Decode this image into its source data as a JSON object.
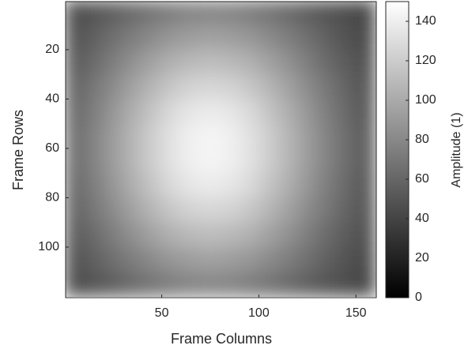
{
  "chart_data": {
    "type": "heatmap",
    "xlabel": "Frame Columns",
    "ylabel": "Frame Rows",
    "colorbar_label": "Amplitude (1)",
    "colormap": "gray",
    "x": [
      5,
      15,
      25,
      35,
      45,
      55,
      65,
      75,
      85,
      95,
      105,
      115,
      125,
      135,
      145,
      155
    ],
    "y": [
      5,
      15,
      25,
      35,
      45,
      55,
      65,
      75,
      85,
      95,
      105,
      115
    ],
    "values": [
      [
        45,
        50,
        56,
        63,
        69,
        74,
        78,
        79,
        78,
        74,
        69,
        63,
        56,
        50,
        45,
        40
      ],
      [
        49,
        57,
        65,
        74,
        82,
        89,
        93,
        95,
        93,
        89,
        82,
        74,
        65,
        57,
        49,
        43
      ],
      [
        54,
        63,
        74,
        85,
        95,
        104,
        109,
        111,
        109,
        104,
        95,
        85,
        74,
        63,
        54,
        47
      ],
      [
        59,
        70,
        82,
        95,
        107,
        117,
        124,
        126,
        124,
        117,
        107,
        95,
        82,
        70,
        59,
        50
      ],
      [
        62,
        74,
        88,
        103,
        116,
        128,
        135,
        138,
        135,
        128,
        116,
        103,
        88,
        74,
        62,
        52
      ],
      [
        64,
        77,
        92,
        107,
        121,
        133,
        141,
        144,
        141,
        133,
        121,
        107,
        92,
        77,
        64,
        54
      ],
      [
        64,
        77,
        92,
        107,
        121,
        133,
        141,
        144,
        141,
        133,
        121,
        107,
        92,
        77,
        64,
        54
      ],
      [
        62,
        74,
        88,
        103,
        116,
        128,
        135,
        138,
        135,
        128,
        116,
        103,
        88,
        74,
        62,
        52
      ],
      [
        59,
        70,
        82,
        95,
        107,
        117,
        124,
        126,
        124,
        117,
        107,
        95,
        82,
        70,
        59,
        50
      ],
      [
        54,
        63,
        74,
        85,
        95,
        104,
        109,
        111,
        109,
        104,
        95,
        85,
        74,
        63,
        54,
        47
      ],
      [
        49,
        57,
        65,
        74,
        82,
        89,
        93,
        95,
        93,
        89,
        82,
        74,
        65,
        57,
        49,
        43
      ],
      [
        45,
        50,
        56,
        63,
        69,
        74,
        78,
        79,
        78,
        74,
        69,
        63,
        56,
        50,
        45,
        40
      ]
    ],
    "xlim": [
      0.5,
      160.5
    ],
    "ylim": [
      120.5,
      0.5
    ],
    "xticks": [
      50,
      100,
      150
    ],
    "yticks": [
      20,
      40,
      60,
      80,
      100
    ],
    "clim": [
      0,
      150
    ],
    "cticks": [
      0,
      20,
      40,
      60,
      80,
      100,
      120,
      140
    ]
  }
}
